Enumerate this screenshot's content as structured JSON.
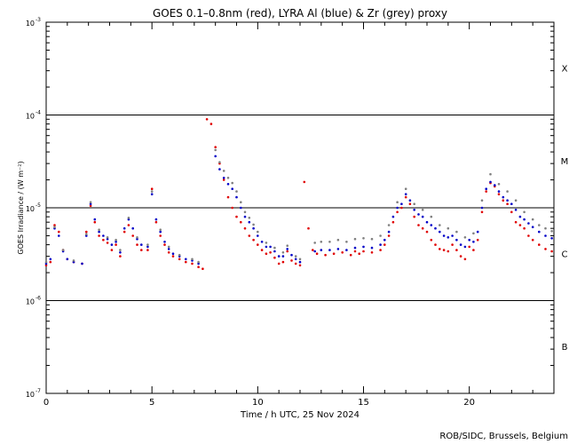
{
  "chart_data": {
    "type": "scatter",
    "title": "GOES 0.1–0.8nm (red), LYRA Al (blue) & Zr (grey) proxy",
    "xlabel": "Time / h UTC, 25 Nov 2024",
    "ylabel": "GOES Irradiance / (W m⁻²)",
    "xlim": [
      0,
      24
    ],
    "ylim": [
      1e-07,
      0.001
    ],
    "yscale": "log",
    "x_ticks": [
      0,
      5,
      10,
      15,
      20
    ],
    "x_tick_labels": [
      "0",
      "5",
      "10",
      "15",
      "20"
    ],
    "y_ticks": [
      {
        "base": "10",
        "exp": "-7"
      },
      {
        "base": "10",
        "exp": "-6"
      },
      {
        "base": "10",
        "exp": "-5"
      },
      {
        "base": "10",
        "exp": "-4"
      },
      {
        "base": "10",
        "exp": "-3"
      }
    ],
    "flare_classes": [
      {
        "label": "B",
        "y": 3.2e-07
      },
      {
        "label": "C",
        "y": 3.2e-06
      },
      {
        "label": "M",
        "y": 3.2e-05
      },
      {
        "label": "X",
        "y": 0.00032
      }
    ],
    "reference_lines": [
      1e-06,
      1e-05,
      0.0001
    ],
    "grid": false,
    "series": [
      {
        "color": "#e00000",
        "points": [
          [
            0,
            2.4e-06
          ],
          [
            0.2,
            2.6e-06
          ],
          [
            0.4,
            6.5e-06
          ],
          [
            0.6,
            5.5e-06
          ],
          [
            0.8,
            3.5e-06
          ],
          [
            1.0,
            2.8e-06
          ],
          [
            1.3,
            2.6e-06
          ],
          [
            1.7,
            2.5e-06
          ],
          [
            1.9,
            5.5e-06
          ],
          [
            2.1,
            1.05e-05
          ],
          [
            2.3,
            7e-06
          ],
          [
            2.5,
            5e-06
          ],
          [
            2.7,
            4.5e-06
          ],
          [
            2.9,
            4.2e-06
          ],
          [
            3.1,
            3.5e-06
          ],
          [
            3.3,
            4e-06
          ],
          [
            3.5,
            3e-06
          ],
          [
            3.7,
            5.5e-06
          ],
          [
            3.9,
            6.5e-06
          ],
          [
            4.1,
            5e-06
          ],
          [
            4.3,
            4e-06
          ],
          [
            4.5,
            3.5e-06
          ],
          [
            4.8,
            3.5e-06
          ],
          [
            5.0,
            1.6e-05
          ],
          [
            5.2,
            7e-06
          ],
          [
            5.4,
            5e-06
          ],
          [
            5.6,
            4e-06
          ],
          [
            5.8,
            3.3e-06
          ],
          [
            6.0,
            3e-06
          ],
          [
            6.3,
            2.8e-06
          ],
          [
            6.6,
            2.6e-06
          ],
          [
            6.9,
            2.5e-06
          ],
          [
            7.2,
            2.3e-06
          ],
          [
            7.4,
            2.2e-06
          ]
        ]
      },
      {
        "color": "#e00000",
        "points": [
          [
            7.6,
            9e-05
          ],
          [
            7.8,
            8e-05
          ],
          [
            8.0,
            4.5e-05
          ],
          [
            8.2,
            3e-05
          ],
          [
            8.4,
            2e-05
          ],
          [
            8.6,
            1.3e-05
          ],
          [
            8.8,
            1e-05
          ],
          [
            9.0,
            8e-06
          ],
          [
            9.2,
            7e-06
          ],
          [
            9.4,
            6e-06
          ],
          [
            9.6,
            5e-06
          ],
          [
            9.8,
            4.5e-06
          ],
          [
            10.0,
            4e-06
          ],
          [
            10.2,
            3.5e-06
          ],
          [
            10.4,
            3.2e-06
          ],
          [
            10.6,
            3.3e-06
          ],
          [
            10.8,
            2.9e-06
          ],
          [
            11.0,
            2.5e-06
          ],
          [
            11.2,
            2.6e-06
          ],
          [
            11.4,
            3.4e-06
          ],
          [
            11.6,
            2.7e-06
          ],
          [
            11.8,
            2.5e-06
          ],
          [
            12.0,
            2.4e-06
          ]
        ]
      },
      {
        "color": "#e00000",
        "points": [
          [
            12.2,
            1.9e-05
          ],
          [
            12.4,
            6e-06
          ],
          [
            12.6,
            3.5e-06
          ],
          [
            12.8,
            3.2e-06
          ],
          [
            13.2,
            3.1e-06
          ],
          [
            13.6,
            3.2e-06
          ],
          [
            14.0,
            3.3e-06
          ],
          [
            14.4,
            3.1e-06
          ],
          [
            14.6,
            3.4e-06
          ],
          [
            14.8,
            3.2e-06
          ],
          [
            15.0,
            3.4e-06
          ],
          [
            15.4,
            3.3e-06
          ],
          [
            15.8,
            3.5e-06
          ],
          [
            16.0,
            4e-06
          ],
          [
            16.2,
            5e-06
          ],
          [
            16.4,
            7e-06
          ],
          [
            16.6,
            9e-06
          ],
          [
            16.8,
            1e-05
          ],
          [
            17.0,
            1.3e-05
          ],
          [
            17.2,
            1.1e-05
          ],
          [
            17.4,
            8e-06
          ],
          [
            17.6,
            6.5e-06
          ],
          [
            17.8,
            6e-06
          ],
          [
            18.0,
            5.5e-06
          ],
          [
            18.2,
            4.5e-06
          ],
          [
            18.4,
            4e-06
          ],
          [
            18.6,
            3.6e-06
          ],
          [
            18.8,
            3.5e-06
          ],
          [
            19.0,
            3.4e-06
          ],
          [
            19.2,
            4e-06
          ],
          [
            19.4,
            3.5e-06
          ],
          [
            19.6,
            3e-06
          ],
          [
            19.8,
            2.8e-06
          ],
          [
            20.0,
            3.8e-06
          ],
          [
            20.2,
            3.5e-06
          ],
          [
            20.4,
            4.5e-06
          ],
          [
            20.6,
            9e-06
          ],
          [
            20.8,
            1.5e-05
          ],
          [
            21.0,
            1.85e-05
          ],
          [
            21.2,
            1.7e-05
          ],
          [
            21.4,
            1.4e-05
          ],
          [
            21.6,
            1.2e-05
          ],
          [
            21.8,
            1.1e-05
          ],
          [
            22.0,
            9e-06
          ],
          [
            22.2,
            7e-06
          ],
          [
            22.4,
            6.5e-06
          ],
          [
            22.6,
            6e-06
          ],
          [
            22.8,
            5e-06
          ],
          [
            23.0,
            4.5e-06
          ],
          [
            23.3,
            4e-06
          ],
          [
            23.6,
            3.6e-06
          ],
          [
            23.9,
            3.4e-06
          ]
        ]
      },
      {
        "color": "#0000c8",
        "points": [
          [
            0,
            2.5e-06
          ],
          [
            0.2,
            2.8e-06
          ],
          [
            0.4,
            6e-06
          ],
          [
            0.6,
            5e-06
          ],
          [
            0.8,
            3.4e-06
          ],
          [
            1.0,
            2.8e-06
          ],
          [
            1.3,
            2.6e-06
          ],
          [
            1.7,
            2.5e-06
          ],
          [
            1.9,
            5e-06
          ],
          [
            2.1,
            1.1e-05
          ],
          [
            2.3,
            7.5e-06
          ],
          [
            2.5,
            5.5e-06
          ],
          [
            2.7,
            5e-06
          ],
          [
            2.9,
            4.6e-06
          ],
          [
            3.1,
            4e-06
          ],
          [
            3.3,
            4.3e-06
          ],
          [
            3.5,
            3.3e-06
          ],
          [
            3.7,
            6e-06
          ],
          [
            3.9,
            7.5e-06
          ],
          [
            4.1,
            6e-06
          ],
          [
            4.3,
            4.6e-06
          ],
          [
            4.5,
            4e-06
          ],
          [
            4.8,
            3.8e-06
          ],
          [
            5.0,
            1.4e-05
          ],
          [
            5.2,
            7.5e-06
          ],
          [
            5.4,
            5.5e-06
          ],
          [
            5.6,
            4.3e-06
          ],
          [
            5.8,
            3.6e-06
          ],
          [
            6.0,
            3.2e-06
          ],
          [
            6.3,
            3e-06
          ],
          [
            6.6,
            2.8e-06
          ],
          [
            6.9,
            2.7e-06
          ],
          [
            7.2,
            2.5e-06
          ]
        ]
      },
      {
        "color": "#0000c8",
        "points": [
          [
            8.0,
            3.6e-05
          ],
          [
            8.2,
            2.6e-05
          ],
          [
            8.4,
            2.1e-05
          ],
          [
            8.6,
            1.8e-05
          ],
          [
            8.8,
            1.6e-05
          ],
          [
            9.0,
            1.3e-05
          ],
          [
            9.2,
            1e-05
          ],
          [
            9.4,
            8e-06
          ],
          [
            9.6,
            7e-06
          ],
          [
            9.8,
            6e-06
          ],
          [
            10.0,
            5e-06
          ],
          [
            10.2,
            4.3e-06
          ],
          [
            10.4,
            3.8e-06
          ],
          [
            10.6,
            3.8e-06
          ],
          [
            10.8,
            3.4e-06
          ],
          [
            11.0,
            3e-06
          ],
          [
            11.2,
            3e-06
          ],
          [
            11.4,
            3.6e-06
          ],
          [
            11.6,
            3.1e-06
          ],
          [
            11.8,
            2.8e-06
          ],
          [
            12.0,
            2.6e-06
          ]
        ]
      },
      {
        "color": "#0000c8",
        "points": [
          [
            12.7,
            3.4e-06
          ],
          [
            13.0,
            3.5e-06
          ],
          [
            13.4,
            3.5e-06
          ],
          [
            13.8,
            3.6e-06
          ],
          [
            14.2,
            3.5e-06
          ],
          [
            14.6,
            3.7e-06
          ],
          [
            15.0,
            3.8e-06
          ],
          [
            15.4,
            3.7e-06
          ],
          [
            15.8,
            4e-06
          ],
          [
            16.0,
            4.5e-06
          ],
          [
            16.2,
            5.5e-06
          ],
          [
            16.4,
            8e-06
          ],
          [
            16.6,
            1e-05
          ],
          [
            16.8,
            1.1e-05
          ],
          [
            17.0,
            1.4e-05
          ],
          [
            17.2,
            1.2e-05
          ],
          [
            17.4,
            9.5e-06
          ],
          [
            17.6,
            8.5e-06
          ],
          [
            17.8,
            8e-06
          ],
          [
            18.0,
            7e-06
          ],
          [
            18.2,
            6.5e-06
          ],
          [
            18.4,
            6e-06
          ],
          [
            18.6,
            5.5e-06
          ],
          [
            18.8,
            5e-06
          ],
          [
            19.0,
            4.8e-06
          ],
          [
            19.2,
            5e-06
          ],
          [
            19.4,
            4.5e-06
          ],
          [
            19.6,
            4e-06
          ],
          [
            19.8,
            3.8e-06
          ],
          [
            20.0,
            4.5e-06
          ],
          [
            20.2,
            4.3e-06
          ],
          [
            20.4,
            5.5e-06
          ],
          [
            20.6,
            1e-05
          ],
          [
            20.8,
            1.6e-05
          ],
          [
            21.0,
            1.9e-05
          ],
          [
            21.2,
            1.75e-05
          ],
          [
            21.4,
            1.5e-05
          ],
          [
            21.6,
            1.3e-05
          ],
          [
            21.8,
            1.2e-05
          ],
          [
            22.0,
            1.1e-05
          ],
          [
            22.2,
            9.5e-06
          ],
          [
            22.4,
            8e-06
          ],
          [
            22.6,
            7.5e-06
          ],
          [
            22.8,
            6.8e-06
          ],
          [
            23.0,
            6.2e-06
          ],
          [
            23.3,
            5.5e-06
          ],
          [
            23.6,
            5e-06
          ],
          [
            23.9,
            4.7e-06
          ]
        ]
      },
      {
        "color": "#808080",
        "points": [
          [
            0,
            2.6e-06
          ],
          [
            0.4,
            6.2e-06
          ],
          [
            0.8,
            3.5e-06
          ],
          [
            1.3,
            2.7e-06
          ],
          [
            1.9,
            5.2e-06
          ],
          [
            2.1,
            1.15e-05
          ],
          [
            2.5,
            5.8e-06
          ],
          [
            2.9,
            4.8e-06
          ],
          [
            3.3,
            4.5e-06
          ],
          [
            3.5,
            3.5e-06
          ],
          [
            3.9,
            7.8e-06
          ],
          [
            4.3,
            4.8e-06
          ],
          [
            4.8,
            4e-06
          ],
          [
            5.0,
            1.5e-05
          ],
          [
            5.4,
            5.8e-06
          ],
          [
            5.8,
            3.8e-06
          ],
          [
            6.3,
            3.1e-06
          ],
          [
            6.9,
            2.8e-06
          ],
          [
            7.2,
            2.6e-06
          ]
        ]
      },
      {
        "color": "#808080",
        "points": [
          [
            8.0,
            4.2e-05
          ],
          [
            8.2,
            3.1e-05
          ],
          [
            8.4,
            2.5e-05
          ],
          [
            8.6,
            2.1e-05
          ],
          [
            8.8,
            1.85e-05
          ],
          [
            9.0,
            1.5e-05
          ],
          [
            9.2,
            1.15e-05
          ],
          [
            9.4,
            9e-06
          ],
          [
            9.6,
            7.8e-06
          ],
          [
            9.8,
            6.6e-06
          ],
          [
            10.0,
            5.5e-06
          ],
          [
            10.4,
            4.2e-06
          ],
          [
            10.8,
            3.7e-06
          ],
          [
            11.2,
            3.3e-06
          ],
          [
            11.4,
            3.9e-06
          ],
          [
            11.8,
            3e-06
          ],
          [
            12.0,
            2.8e-06
          ]
        ]
      },
      {
        "color": "#808080",
        "points": [
          [
            12.7,
            4.2e-06
          ],
          [
            13.0,
            4.3e-06
          ],
          [
            13.4,
            4.3e-06
          ],
          [
            13.8,
            4.5e-06
          ],
          [
            14.2,
            4.3e-06
          ],
          [
            14.6,
            4.6e-06
          ],
          [
            15.0,
            4.7e-06
          ],
          [
            15.4,
            4.6e-06
          ],
          [
            15.8,
            5e-06
          ],
          [
            16.2,
            6.5e-06
          ],
          [
            16.6,
            1.15e-05
          ],
          [
            17.0,
            1.6e-05
          ],
          [
            17.4,
            1.1e-05
          ],
          [
            17.8,
            9.5e-06
          ],
          [
            18.2,
            8e-06
          ],
          [
            18.6,
            6.5e-06
          ],
          [
            19.0,
            6e-06
          ],
          [
            19.4,
            5.5e-06
          ],
          [
            19.8,
            4.8e-06
          ],
          [
            20.2,
            5.3e-06
          ],
          [
            20.6,
            1.2e-05
          ],
          [
            21.0,
            2.3e-05
          ],
          [
            21.4,
            1.8e-05
          ],
          [
            21.8,
            1.5e-05
          ],
          [
            22.2,
            1.2e-05
          ],
          [
            22.6,
            9e-06
          ],
          [
            23.0,
            7.5e-06
          ],
          [
            23.3,
            6.5e-06
          ],
          [
            23.6,
            6e-06
          ],
          [
            23.9,
            5.6e-06
          ]
        ]
      }
    ]
  },
  "footer": {
    "credit": "ROB/SIDC, Brussels, Belgium"
  }
}
